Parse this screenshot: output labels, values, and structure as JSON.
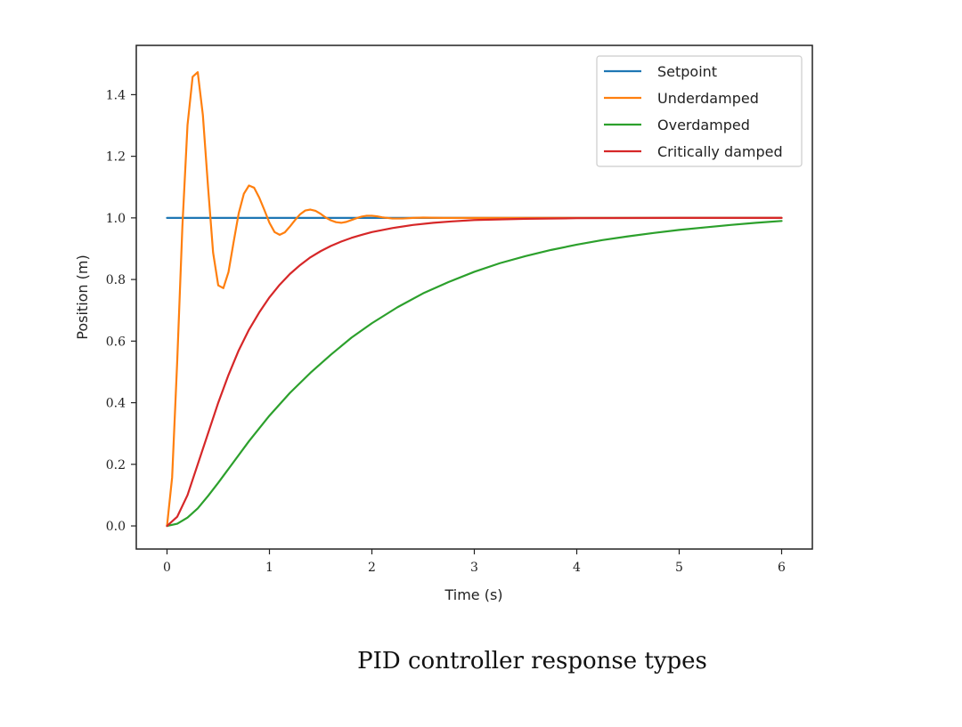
{
  "caption": "PID controller response types",
  "chart_data": {
    "type": "line",
    "title": "",
    "xlabel": "Time (s)",
    "ylabel": "Position (m)",
    "xlim": [
      -0.3,
      6.3
    ],
    "ylim": [
      -0.075,
      1.56
    ],
    "xticks": [
      0,
      1,
      2,
      3,
      4,
      5,
      6
    ],
    "yticks": [
      0.0,
      0.2,
      0.4,
      0.6,
      0.8,
      1.0,
      1.2,
      1.4
    ],
    "grid": false,
    "legend_position": "top-right",
    "series": [
      {
        "name": "Setpoint",
        "color": "#1f77b4",
        "x": [
          0,
          6
        ],
        "y": [
          1.0,
          1.0
        ]
      },
      {
        "name": "Underdamped",
        "color": "#ff7f0e",
        "x": [
          0,
          0.05,
          0.1,
          0.15,
          0.2,
          0.25,
          0.3,
          0.35,
          0.4,
          0.45,
          0.5,
          0.55,
          0.6,
          0.65,
          0.7,
          0.75,
          0.8,
          0.85,
          0.9,
          0.95,
          1.0,
          1.05,
          1.1,
          1.15,
          1.2,
          1.25,
          1.3,
          1.35,
          1.4,
          1.45,
          1.5,
          1.55,
          1.6,
          1.65,
          1.7,
          1.75,
          1.8,
          1.85,
          1.9,
          1.95,
          2.0,
          2.05,
          2.1,
          2.2,
          2.3,
          2.4,
          2.5,
          2.7,
          3.0,
          4.0,
          5.0,
          6.0
        ],
        "y": [
          0.0,
          0.158,
          0.538,
          0.972,
          1.301,
          1.458,
          1.473,
          1.334,
          1.103,
          0.887,
          0.781,
          0.772,
          0.824,
          0.921,
          1.015,
          1.078,
          1.105,
          1.098,
          1.066,
          1.026,
          0.984,
          0.954,
          0.945,
          0.953,
          0.972,
          0.993,
          1.012,
          1.024,
          1.027,
          1.023,
          1.013,
          1.001,
          0.992,
          0.986,
          0.984,
          0.987,
          0.993,
          0.999,
          1.004,
          1.007,
          1.007,
          1.005,
          1.002,
          0.998,
          0.998,
          1.0,
          1.001,
          1.0,
          1.0,
          1.0,
          1.0,
          1.0
        ]
      },
      {
        "name": "Overdamped",
        "color": "#2ca02c",
        "x": [
          0,
          0.1,
          0.2,
          0.3,
          0.4,
          0.5,
          0.6,
          0.8,
          1.0,
          1.2,
          1.4,
          1.6,
          1.8,
          2.0,
          2.25,
          2.5,
          2.75,
          3.0,
          3.25,
          3.5,
          3.75,
          4.0,
          4.25,
          4.5,
          4.75,
          5.0,
          5.25,
          5.5,
          5.75,
          6.0
        ],
        "y": [
          0.0,
          0.007,
          0.027,
          0.057,
          0.097,
          0.14,
          0.185,
          0.275,
          0.358,
          0.432,
          0.497,
          0.556,
          0.611,
          0.658,
          0.71,
          0.755,
          0.792,
          0.825,
          0.853,
          0.876,
          0.896,
          0.913,
          0.928,
          0.94,
          0.951,
          0.961,
          0.969,
          0.977,
          0.984,
          0.99
        ]
      },
      {
        "name": "Critically damped",
        "color": "#d62728",
        "x": [
          0,
          0.1,
          0.2,
          0.3,
          0.4,
          0.5,
          0.6,
          0.7,
          0.8,
          0.9,
          1.0,
          1.1,
          1.2,
          1.3,
          1.4,
          1.5,
          1.6,
          1.7,
          1.8,
          1.9,
          2.0,
          2.2,
          2.4,
          2.6,
          2.8,
          3.0,
          3.5,
          4.0,
          5.0,
          6.0
        ],
        "y": [
          0.0,
          0.03,
          0.1,
          0.2,
          0.3,
          0.4,
          0.49,
          0.57,
          0.637,
          0.693,
          0.742,
          0.783,
          0.818,
          0.847,
          0.872,
          0.892,
          0.909,
          0.923,
          0.935,
          0.945,
          0.954,
          0.967,
          0.977,
          0.984,
          0.989,
          0.993,
          0.997,
          0.999,
          1.0,
          1.0
        ]
      }
    ]
  }
}
